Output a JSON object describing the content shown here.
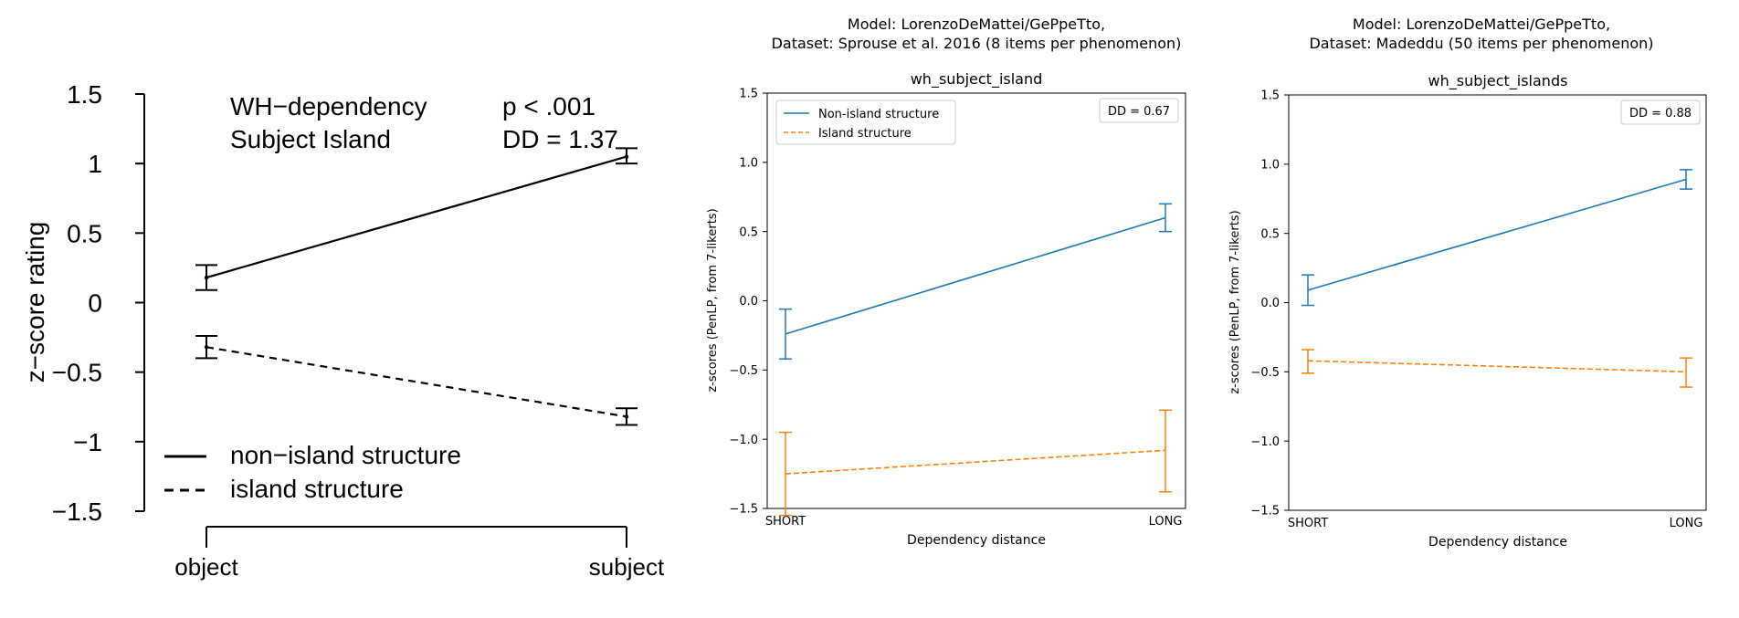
{
  "chart_data": [
    {
      "type": "line",
      "ylabel": "z−score rating",
      "categories": [
        "object",
        "subject"
      ],
      "yticks": [
        "1.5",
        "1",
        "0.5",
        "0",
        "−0.5",
        "−1",
        "−1.5"
      ],
      "ylim": [
        -1.5,
        1.5
      ],
      "annotation": {
        "left_lines": [
          "WH−dependency",
          "Subject Island"
        ],
        "right_lines": [
          "p < .001",
          "DD = 1.37"
        ]
      },
      "legend": [
        "non−island structure",
        "island structure"
      ],
      "series": [
        {
          "name": "non−island structure",
          "style": "solid",
          "color": "#000000",
          "values": [
            0.18,
            1.05
          ],
          "err_low": [
            0.09,
            1.0
          ],
          "err_high": [
            0.27,
            1.11
          ]
        },
        {
          "name": "island structure",
          "style": "dashed",
          "color": "#000000",
          "values": [
            -0.32,
            -0.82
          ],
          "err_low": [
            -0.4,
            -0.88
          ],
          "err_high": [
            -0.24,
            -0.76
          ]
        }
      ]
    },
    {
      "type": "line",
      "title_lines": [
        "Model: LorenzoDeMattei/GePpeTto,",
        "Dataset: Sprouse et al. 2016 (8 items per phenomenon)"
      ],
      "subtitle": "wh_subject_island",
      "xlabel": "Dependency distance",
      "ylabel": "z-scores (PenLP, from 7-likerts)",
      "categories": [
        "SHORT",
        "LONG"
      ],
      "yticks": [
        "1.5",
        "1.0",
        "0.5",
        "0.0",
        "−0.5",
        "−1.0",
        "−1.5"
      ],
      "ylim": [
        -1.5,
        1.5
      ],
      "dd_label": "DD = 0.67",
      "legend_placement": "top-left",
      "series": [
        {
          "name": "Non-island structure",
          "style": "solid",
          "color": "#1f77b4",
          "values": [
            -0.24,
            0.6
          ],
          "err_low": [
            -0.42,
            0.5
          ],
          "err_high": [
            -0.06,
            0.7
          ]
        },
        {
          "name": "Island structure",
          "style": "dashed",
          "color": "#ff7f0e",
          "values": [
            -1.25,
            -1.08
          ],
          "err_low": [
            -1.55,
            -1.38
          ],
          "err_high": [
            -0.95,
            -0.79
          ]
        }
      ]
    },
    {
      "type": "line",
      "title_lines": [
        "Model: LorenzoDeMattei/GePpeTto,",
        "Dataset: Madeddu (50 items per phenomenon)"
      ],
      "subtitle": "wh_subject_islands",
      "xlabel": "Dependency distance",
      "ylabel": "z-scores (PenLP, from 7-likerts)",
      "categories": [
        "SHORT",
        "LONG"
      ],
      "yticks": [
        "1.5",
        "1.0",
        "0.5",
        "0.0",
        "−0.5",
        "−1.0",
        "−1.5"
      ],
      "ylim": [
        -1.5,
        1.5
      ],
      "dd_label": "DD = 0.88",
      "series": [
        {
          "name": "",
          "style": "solid",
          "color": "#1f77b4",
          "values": [
            0.09,
            0.89
          ],
          "err_low": [
            -0.02,
            0.82
          ],
          "err_high": [
            0.2,
            0.96
          ]
        },
        {
          "name": "",
          "style": "dashed",
          "color": "#ff7f0e",
          "values": [
            -0.42,
            -0.5
          ],
          "err_low": [
            -0.51,
            -0.61
          ],
          "err_high": [
            -0.34,
            -0.4
          ]
        }
      ]
    }
  ]
}
